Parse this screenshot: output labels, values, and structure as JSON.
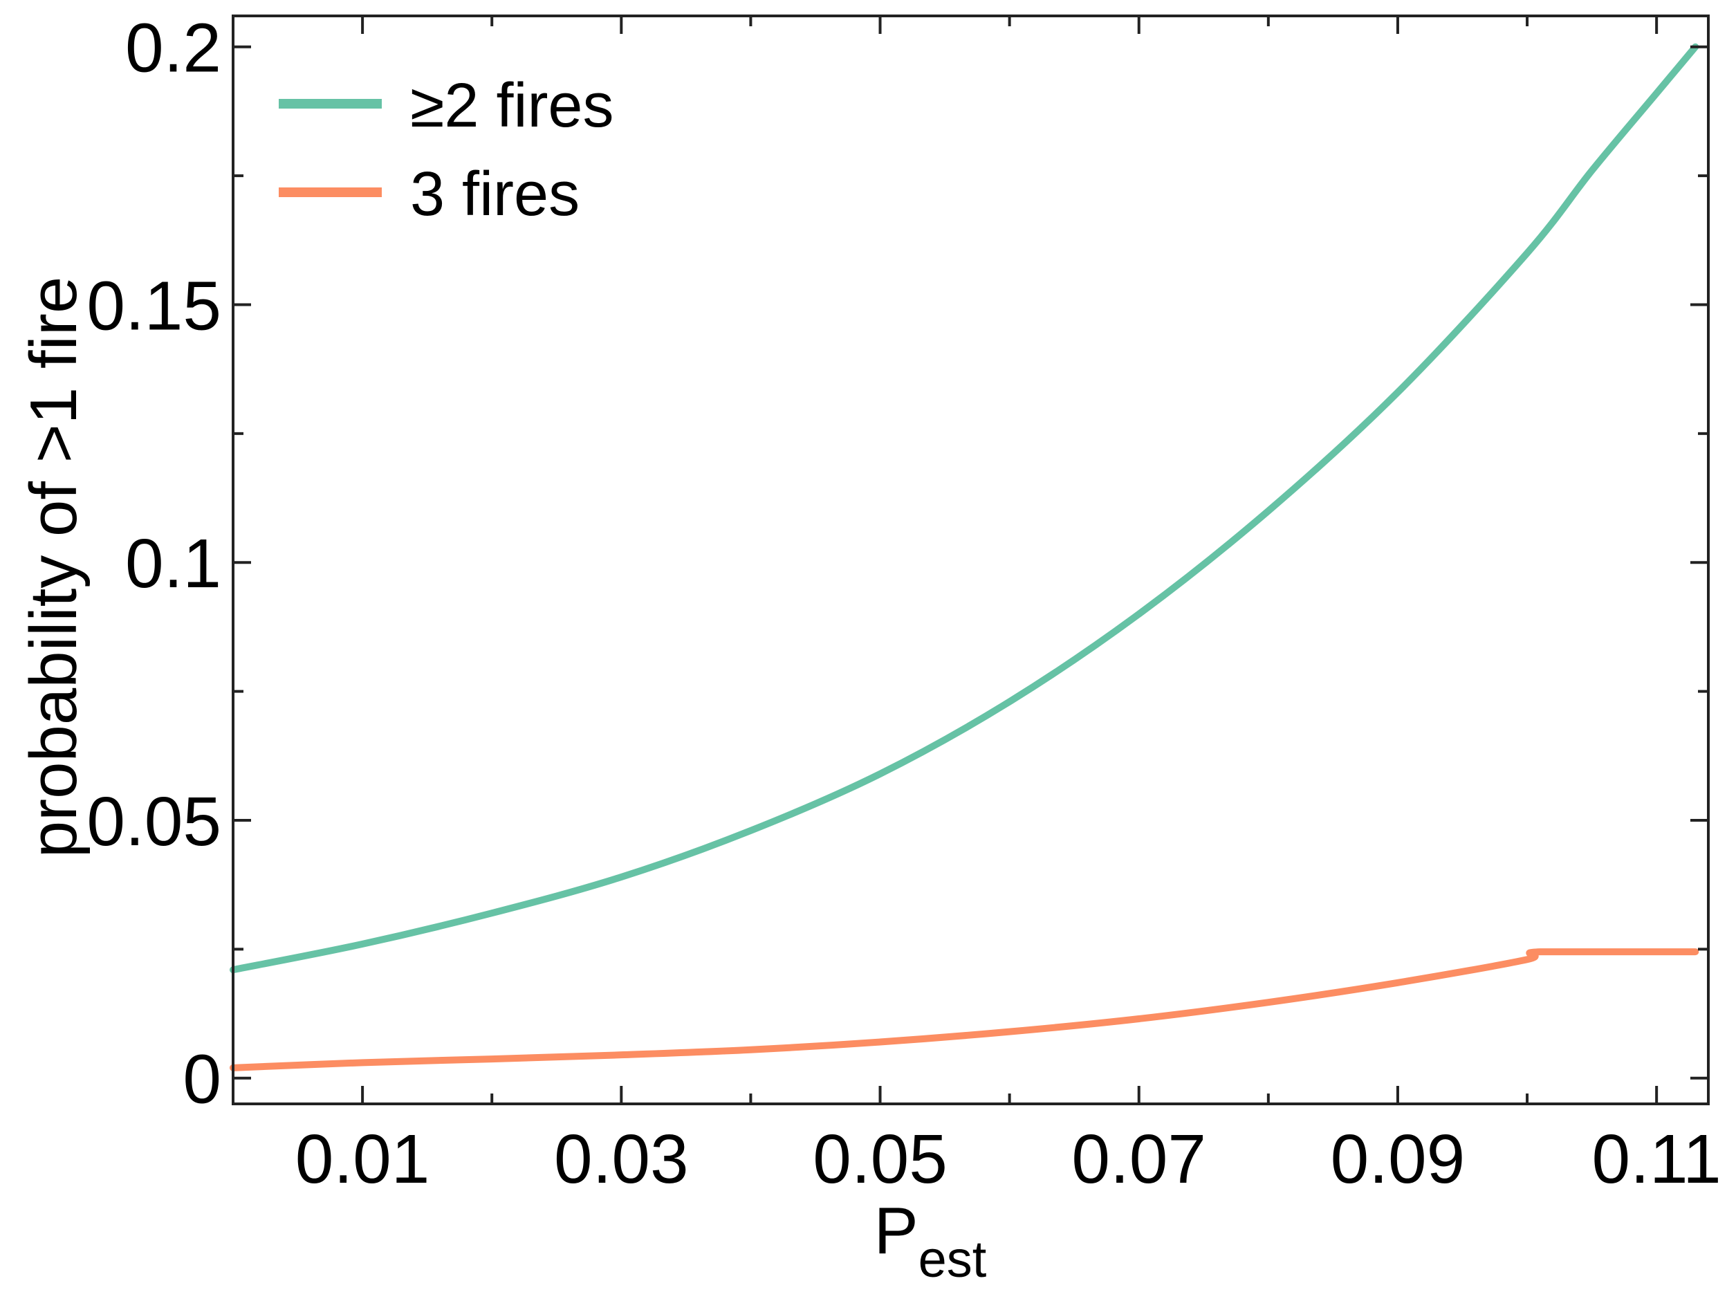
{
  "chart_data": {
    "type": "line",
    "xlabel": "P",
    "xlabel_subscript": "est",
    "ylabel": "probability of >1 fire",
    "xlim": [
      0.0,
      0.114
    ],
    "ylim": [
      -0.005,
      0.206
    ],
    "xticks": [
      0.01,
      0.03,
      0.05,
      0.07,
      0.09,
      0.11
    ],
    "xtick_labels": [
      "0.01",
      "0.03",
      "0.05",
      "0.07",
      "0.09",
      "0.11"
    ],
    "xticks_minor": [
      0.02,
      0.04,
      0.06,
      0.08,
      0.1
    ],
    "yticks": [
      0,
      0.05,
      0.1,
      0.15,
      0.2
    ],
    "ytick_labels": [
      "0",
      "0.05",
      "0.1",
      "0.15",
      "0.2"
    ],
    "yticks_minor": [
      0.025,
      0.075,
      0.125,
      0.175
    ],
    "grid": false,
    "legend_position": "top-left",
    "series": [
      {
        "name": "≥2 fires",
        "color": "#66c2a5",
        "x": [
          0.0,
          0.01,
          0.02,
          0.03,
          0.04,
          0.05,
          0.06,
          0.07,
          0.08,
          0.09,
          0.1,
          0.105,
          0.11,
          0.113
        ],
        "y": [
          0.021,
          0.026,
          0.032,
          0.039,
          0.048,
          0.059,
          0.073,
          0.09,
          0.11,
          0.133,
          0.16,
          0.176,
          0.191,
          0.2
        ]
      },
      {
        "name": "3 fires",
        "color": "#fc8d62",
        "x": [
          0.0,
          0.01,
          0.02,
          0.03,
          0.04,
          0.05,
          0.06,
          0.07,
          0.08,
          0.09,
          0.1,
          0.101,
          0.113
        ],
        "y": [
          0.002,
          0.003,
          0.0037,
          0.0045,
          0.0055,
          0.007,
          0.009,
          0.0115,
          0.0147,
          0.0185,
          0.023,
          0.0245,
          0.0245
        ]
      }
    ]
  }
}
